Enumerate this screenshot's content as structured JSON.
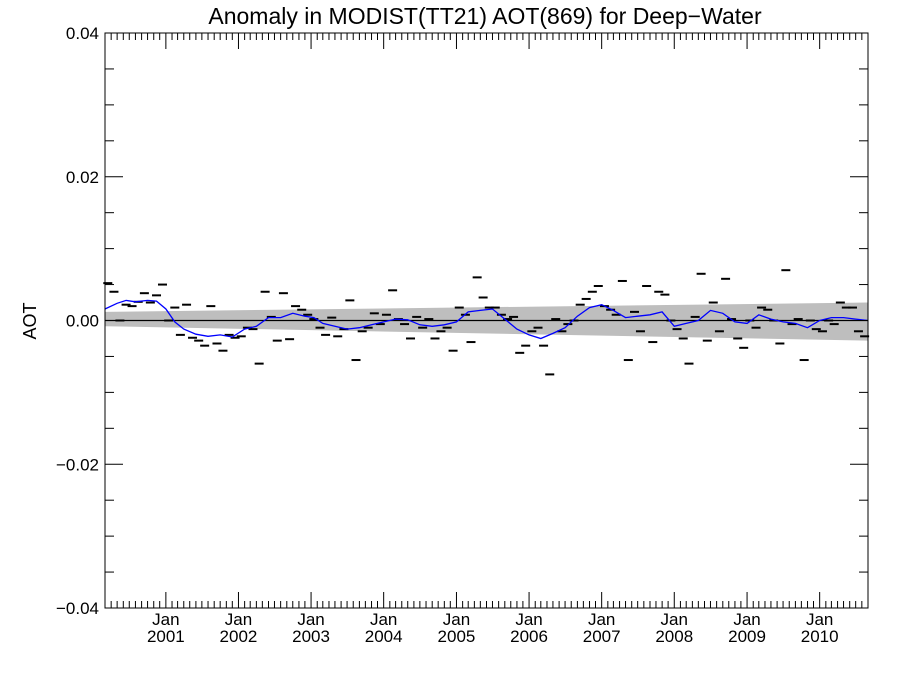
{
  "chart_data": {
    "type": "line",
    "title": "Anomaly in MODIST(TT21) AOT(869) for Deep−Water",
    "ylabel": "AOT",
    "xlabel": "",
    "ylim": [
      -0.04,
      0.04
    ],
    "xlim": [
      "2000-03-01",
      "2010-09-01"
    ],
    "y_ticks": [
      {
        "value": -0.04,
        "label": "−0.04"
      },
      {
        "value": -0.02,
        "label": "−0.02"
      },
      {
        "value": 0.0,
        "label": "0.00"
      },
      {
        "value": 0.02,
        "label": "0.02"
      },
      {
        "value": 0.04,
        "label": "0.04"
      }
    ],
    "x_ticks": [
      {
        "date": "2001-01-01",
        "month": "Jan",
        "year": "2001"
      },
      {
        "date": "2002-01-01",
        "month": "Jan",
        "year": "2002"
      },
      {
        "date": "2003-01-01",
        "month": "Jan",
        "year": "2003"
      },
      {
        "date": "2004-01-01",
        "month": "Jan",
        "year": "2004"
      },
      {
        "date": "2005-01-01",
        "month": "Jan",
        "year": "2005"
      },
      {
        "date": "2006-01-01",
        "month": "Jan",
        "year": "2006"
      },
      {
        "date": "2007-01-01",
        "month": "Jan",
        "year": "2007"
      },
      {
        "date": "2008-01-01",
        "month": "Jan",
        "year": "2008"
      },
      {
        "date": "2009-01-01",
        "month": "Jan",
        "year": "2009"
      },
      {
        "date": "2010-01-01",
        "month": "Jan",
        "year": "2010"
      }
    ],
    "grid": false,
    "colors": {
      "smoothed": "#0000ff",
      "monthly": "#000000",
      "band": "#bebebe",
      "zero_line": "#000000"
    },
    "band": {
      "start": {
        "date": "2000-03-01",
        "lower": -0.0008,
        "upper": 0.0012
      },
      "end": {
        "date": "2010-09-01",
        "lower": -0.0028,
        "upper": 0.0025
      }
    },
    "series": [
      {
        "style": "dash-markers",
        "points": [
          [
            "2000-03-15",
            0.0052
          ],
          [
            "2000-04-15",
            0.004
          ],
          [
            "2000-05-15",
            0.0
          ],
          [
            "2000-06-15",
            0.0022
          ],
          [
            "2000-07-15",
            0.002
          ],
          [
            "2000-08-15",
            0.0026
          ],
          [
            "2000-09-15",
            0.0038
          ],
          [
            "2000-10-15",
            0.0025
          ],
          [
            "2000-11-15",
            0.0035
          ],
          [
            "2000-12-15",
            0.005
          ],
          [
            "2001-01-15",
            0.0
          ],
          [
            "2001-02-15",
            0.0018
          ],
          [
            "2001-03-15",
            -0.002
          ],
          [
            "2001-04-15",
            0.0022
          ],
          [
            "2001-05-15",
            -0.0024
          ],
          [
            "2001-06-15",
            -0.0028
          ],
          [
            "2001-07-15",
            -0.0035
          ],
          [
            "2001-08-15",
            0.002
          ],
          [
            "2001-09-15",
            -0.0032
          ],
          [
            "2001-10-15",
            -0.0042
          ],
          [
            "2001-11-15",
            -0.002
          ],
          [
            "2001-12-15",
            -0.0024
          ],
          [
            "2002-01-15",
            -0.0022
          ],
          [
            "2002-02-15",
            -0.001
          ],
          [
            "2002-03-15",
            -0.0012
          ],
          [
            "2002-04-15",
            -0.006
          ],
          [
            "2002-05-15",
            0.004
          ],
          [
            "2002-06-15",
            0.0005
          ],
          [
            "2002-07-15",
            -0.0028
          ],
          [
            "2002-08-15",
            0.0038
          ],
          [
            "2002-09-15",
            -0.0026
          ],
          [
            "2002-10-15",
            0.002
          ],
          [
            "2002-11-15",
            0.0015
          ],
          [
            "2002-12-15",
            0.0008
          ],
          [
            "2003-01-15",
            0.0002
          ],
          [
            "2003-02-15",
            -0.001
          ],
          [
            "2003-03-15",
            -0.002
          ],
          [
            "2003-04-15",
            0.0004
          ],
          [
            "2003-05-15",
            -0.0022
          ],
          [
            "2003-06-15",
            -0.0012
          ],
          [
            "2003-07-15",
            0.0028
          ],
          [
            "2003-08-15",
            -0.0055
          ],
          [
            "2003-09-15",
            -0.0015
          ],
          [
            "2003-10-15",
            -0.001
          ],
          [
            "2003-11-15",
            0.001
          ],
          [
            "2003-12-15",
            -0.0005
          ],
          [
            "2004-01-15",
            0.0008
          ],
          [
            "2004-02-15",
            0.0042
          ],
          [
            "2004-03-15",
            0.0002
          ],
          [
            "2004-04-15",
            -0.0005
          ],
          [
            "2004-05-15",
            -0.0025
          ],
          [
            "2004-06-15",
            0.0005
          ],
          [
            "2004-07-15",
            -0.001
          ],
          [
            "2004-08-15",
            0.0002
          ],
          [
            "2004-09-15",
            -0.0025
          ],
          [
            "2004-10-15",
            -0.0015
          ],
          [
            "2004-11-15",
            -0.001
          ],
          [
            "2004-12-15",
            -0.0042
          ],
          [
            "2005-01-15",
            0.0018
          ],
          [
            "2005-02-15",
            0.0008
          ],
          [
            "2005-03-15",
            -0.003
          ],
          [
            "2005-04-15",
            0.006
          ],
          [
            "2005-05-15",
            0.0032
          ],
          [
            "2005-06-15",
            0.0018
          ],
          [
            "2005-07-15",
            0.0018
          ],
          [
            "2005-08-15",
            0.0008
          ],
          [
            "2005-09-15",
            0.0002
          ],
          [
            "2005-10-15",
            0.0005
          ],
          [
            "2005-11-15",
            -0.0045
          ],
          [
            "2005-12-15",
            -0.0035
          ],
          [
            "2006-01-15",
            -0.0015
          ],
          [
            "2006-02-15",
            -0.001
          ],
          [
            "2006-03-15",
            -0.0035
          ],
          [
            "2006-04-15",
            -0.0075
          ],
          [
            "2006-05-15",
            0.0002
          ],
          [
            "2006-06-15",
            -0.0015
          ],
          [
            "2006-07-15",
            -0.0005
          ],
          [
            "2006-08-15",
            0.0
          ],
          [
            "2006-09-15",
            0.0022
          ],
          [
            "2006-10-15",
            0.003
          ],
          [
            "2006-11-15",
            0.004
          ],
          [
            "2006-12-15",
            0.0048
          ],
          [
            "2007-01-15",
            0.002
          ],
          [
            "2007-02-15",
            0.0015
          ],
          [
            "2007-03-15",
            0.0008
          ],
          [
            "2007-04-15",
            0.0055
          ],
          [
            "2007-05-15",
            -0.0055
          ],
          [
            "2007-06-15",
            0.0012
          ],
          [
            "2007-07-15",
            -0.0015
          ],
          [
            "2007-08-15",
            0.0048
          ],
          [
            "2007-09-15",
            -0.003
          ],
          [
            "2007-10-15",
            0.004
          ],
          [
            "2007-11-15",
            0.0036
          ],
          [
            "2007-12-15",
            0.0
          ],
          [
            "2008-01-15",
            -0.0012
          ],
          [
            "2008-02-15",
            -0.0025
          ],
          [
            "2008-03-15",
            -0.006
          ],
          [
            "2008-04-15",
            0.0005
          ],
          [
            "2008-05-15",
            0.0065
          ],
          [
            "2008-06-15",
            -0.0028
          ],
          [
            "2008-07-15",
            0.0025
          ],
          [
            "2008-08-15",
            -0.0015
          ],
          [
            "2008-09-15",
            0.0058
          ],
          [
            "2008-10-15",
            0.0002
          ],
          [
            "2008-11-15",
            -0.0025
          ],
          [
            "2008-12-15",
            -0.0038
          ],
          [
            "2009-01-15",
            0.0
          ],
          [
            "2009-02-15",
            -0.001
          ],
          [
            "2009-03-15",
            0.0018
          ],
          [
            "2009-04-15",
            0.0015
          ],
          [
            "2009-05-15",
            0.0
          ],
          [
            "2009-06-15",
            -0.0032
          ],
          [
            "2009-07-15",
            0.007
          ],
          [
            "2009-08-15",
            -0.0005
          ],
          [
            "2009-09-15",
            0.0002
          ],
          [
            "2009-10-15",
            -0.0055
          ],
          [
            "2009-11-15",
            0.0
          ],
          [
            "2009-12-15",
            -0.0012
          ],
          [
            "2010-01-15",
            -0.0015
          ],
          [
            "2010-02-15",
            0.0
          ],
          [
            "2010-03-15",
            -0.0005
          ],
          [
            "2010-04-15",
            0.0025
          ],
          [
            "2010-05-15",
            0.0018
          ],
          [
            "2010-06-15",
            0.0018
          ],
          [
            "2010-07-15",
            -0.0015
          ],
          [
            "2010-08-15",
            -0.0022
          ]
        ]
      },
      {
        "style": "line",
        "points": [
          [
            "2000-03-01",
            0.0016
          ],
          [
            "2000-05-01",
            0.0024
          ],
          [
            "2000-06-15",
            0.0028
          ],
          [
            "2000-08-01",
            0.0026
          ],
          [
            "2000-10-01",
            0.0028
          ],
          [
            "2000-11-15",
            0.0027
          ],
          [
            "2001-01-01",
            0.0016
          ],
          [
            "2001-02-15",
            -0.0002
          ],
          [
            "2001-04-01",
            -0.0012
          ],
          [
            "2001-06-01",
            -0.0019
          ],
          [
            "2001-08-01",
            -0.0022
          ],
          [
            "2001-10-01",
            -0.002
          ],
          [
            "2001-12-01",
            -0.0023
          ],
          [
            "2002-02-01",
            -0.0012
          ],
          [
            "2002-04-01",
            -0.0008
          ],
          [
            "2002-06-01",
            0.0004
          ],
          [
            "2002-08-01",
            0.0004
          ],
          [
            "2002-10-01",
            0.001
          ],
          [
            "2002-12-01",
            0.0006
          ],
          [
            "2003-01-15",
            0.0004
          ],
          [
            "2003-03-01",
            -0.0004
          ],
          [
            "2003-05-01",
            -0.0008
          ],
          [
            "2003-07-01",
            -0.0012
          ],
          [
            "2003-09-01",
            -0.001
          ],
          [
            "2003-11-01",
            -0.0006
          ],
          [
            "2004-01-01",
            -0.0002
          ],
          [
            "2004-03-01",
            0.0002
          ],
          [
            "2004-05-01",
            0.0001
          ],
          [
            "2004-07-01",
            -0.0006
          ],
          [
            "2004-09-01",
            -0.0008
          ],
          [
            "2004-11-01",
            -0.0006
          ],
          [
            "2005-01-01",
            -0.0002
          ],
          [
            "2005-03-01",
            0.0012
          ],
          [
            "2005-05-01",
            0.0014
          ],
          [
            "2005-07-01",
            0.0016
          ],
          [
            "2005-09-01",
            0.0002
          ],
          [
            "2005-11-01",
            -0.0012
          ],
          [
            "2006-01-01",
            -0.002
          ],
          [
            "2006-03-01",
            -0.0025
          ],
          [
            "2006-05-01",
            -0.0018
          ],
          [
            "2006-07-01",
            -0.001
          ],
          [
            "2006-09-01",
            0.0006
          ],
          [
            "2006-11-01",
            0.0018
          ],
          [
            "2007-01-01",
            0.0022
          ],
          [
            "2007-03-01",
            0.0014
          ],
          [
            "2007-05-01",
            0.0004
          ],
          [
            "2007-07-01",
            0.0006
          ],
          [
            "2007-09-01",
            0.0008
          ],
          [
            "2007-11-01",
            0.0012
          ],
          [
            "2008-01-01",
            -0.0008
          ],
          [
            "2008-03-01",
            -0.0004
          ],
          [
            "2008-05-01",
            0.0
          ],
          [
            "2008-07-01",
            0.0014
          ],
          [
            "2008-09-01",
            0.001
          ],
          [
            "2008-11-01",
            -0.0002
          ],
          [
            "2009-01-01",
            -0.0004
          ],
          [
            "2009-03-01",
            0.0008
          ],
          [
            "2009-05-01",
            0.0002
          ],
          [
            "2009-07-01",
            -0.0002
          ],
          [
            "2009-09-01",
            -0.0004
          ],
          [
            "2009-11-01",
            -0.001
          ],
          [
            "2010-01-01",
            0.0
          ],
          [
            "2010-03-01",
            0.0004
          ],
          [
            "2010-05-01",
            0.0004
          ],
          [
            "2010-07-01",
            0.0002
          ],
          [
            "2010-09-01",
            0.0
          ]
        ]
      }
    ]
  }
}
